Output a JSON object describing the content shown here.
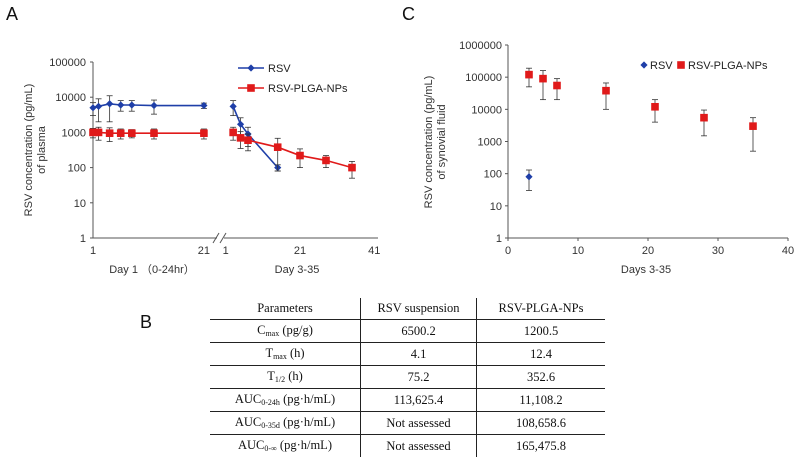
{
  "panels": {
    "a": "A",
    "b": "B",
    "c": "C"
  },
  "colors": {
    "rsv": "#1f3fa8",
    "rsv_nps": "#e01a1a",
    "axis": "#555555",
    "error_bar": "#333333"
  },
  "chart_data": [
    {
      "type": "line",
      "panel": "A",
      "ylabel_line1": "RSV concentration (pg/mL)",
      "ylabel_line2": "of plasma",
      "yscale": "log",
      "ylim": [
        1,
        100000
      ],
      "yticks": [
        "1",
        "10",
        "100",
        "1000",
        "10000",
        "100000"
      ],
      "segments": [
        {
          "name": "Day 1",
          "label": "Day 1 （0-24hr）",
          "xlim": [
            1,
            23
          ],
          "xticks": [
            "1",
            "21"
          ]
        },
        {
          "name": "Days 3-35",
          "label": "Day 3-35",
          "xlim": [
            0,
            42
          ],
          "xticks": [
            "1",
            "21",
            "41"
          ]
        }
      ],
      "series": [
        {
          "name": "RSV",
          "marker": "diamond",
          "segment1": {
            "x": [
              1,
              2,
              4,
              6,
              8,
              12,
              21
            ],
            "y": [
              5000,
              5500,
              6500,
              6000,
              6000,
              5800,
              5800
            ],
            "err": [
              2000,
              3500,
              4500,
              2000,
              2000,
              2500,
              1000
            ]
          },
          "segment2": {
            "x": [
              3,
              5,
              7,
              15
            ],
            "y": [
              5500,
              1700,
              900,
              100
            ],
            "err": [
              2500,
              900,
              500,
              20
            ]
          }
        },
        {
          "name": "RSV-PLGA-NPs",
          "marker": "square",
          "segment1": {
            "x": [
              1,
              2,
              4,
              6,
              8,
              12,
              21
            ],
            "y": [
              1000,
              1000,
              950,
              950,
              950,
              950,
              950
            ],
            "err": [
              300,
              400,
              400,
              300,
              250,
              300,
              300
            ]
          },
          "segment2": {
            "x": [
              3,
              5,
              7,
              15,
              21,
              28,
              35
            ],
            "y": [
              1000,
              700,
              600,
              380,
              220,
              160,
              100
            ],
            "err": [
              400,
              350,
              300,
              300,
              120,
              60,
              50
            ]
          }
        }
      ]
    },
    {
      "type": "scatter",
      "panel": "C",
      "ylabel_line1": "RSV concentration (pg/mL)",
      "ylabel_line2": "of synovial fluid",
      "xlabel": "Days 3-35",
      "yscale": "log",
      "ylim": [
        1,
        1000000
      ],
      "yticks": [
        "1",
        "10",
        "100",
        "1000",
        "10000",
        "100000",
        "1000000"
      ],
      "xlim": [
        0,
        40
      ],
      "xticks": [
        "0",
        "10",
        "20",
        "30",
        "40"
      ],
      "series": [
        {
          "name": "RSV",
          "marker": "diamond",
          "x": [
            3
          ],
          "y": [
            80
          ],
          "err": [
            50
          ]
        },
        {
          "name": "RSV-PLGA-NPs",
          "marker": "square",
          "x": [
            3,
            5,
            7,
            14,
            21,
            28,
            35
          ],
          "y": [
            120000,
            90000,
            55000,
            38000,
            12000,
            5500,
            3000
          ],
          "err": [
            70000,
            70000,
            35000,
            28000,
            8000,
            4000,
            2500
          ]
        }
      ]
    }
  ],
  "table": {
    "headers": [
      "Parameters",
      "RSV suspension",
      "RSV-PLGA-NPs"
    ],
    "rows": [
      {
        "param": "C",
        "sub": "max",
        "unit": " (pg/g)",
        "rsv": "6500.2",
        "nps": "1200.5"
      },
      {
        "param": "T",
        "sub": "max",
        "unit": " (h)",
        "rsv": "4.1",
        "nps": "12.4"
      },
      {
        "param": "T",
        "sub": "1/2",
        "unit": " (h)",
        "rsv": "75.2",
        "nps": "352.6"
      },
      {
        "param": "AUC",
        "sub": "0-24h",
        "unit": " (pg·h/mL)",
        "rsv": "113,625.4",
        "nps": "11,108.2"
      },
      {
        "param": "AUC",
        "sub": "0-35d",
        "unit": " (pg·h/mL)",
        "rsv": "Not assessed",
        "nps": "108,658.6"
      },
      {
        "param": "AUC",
        "sub": "0-∞",
        "unit": " (pg·h/mL)",
        "rsv": "Not assessed",
        "nps": "165,475.8"
      }
    ]
  }
}
